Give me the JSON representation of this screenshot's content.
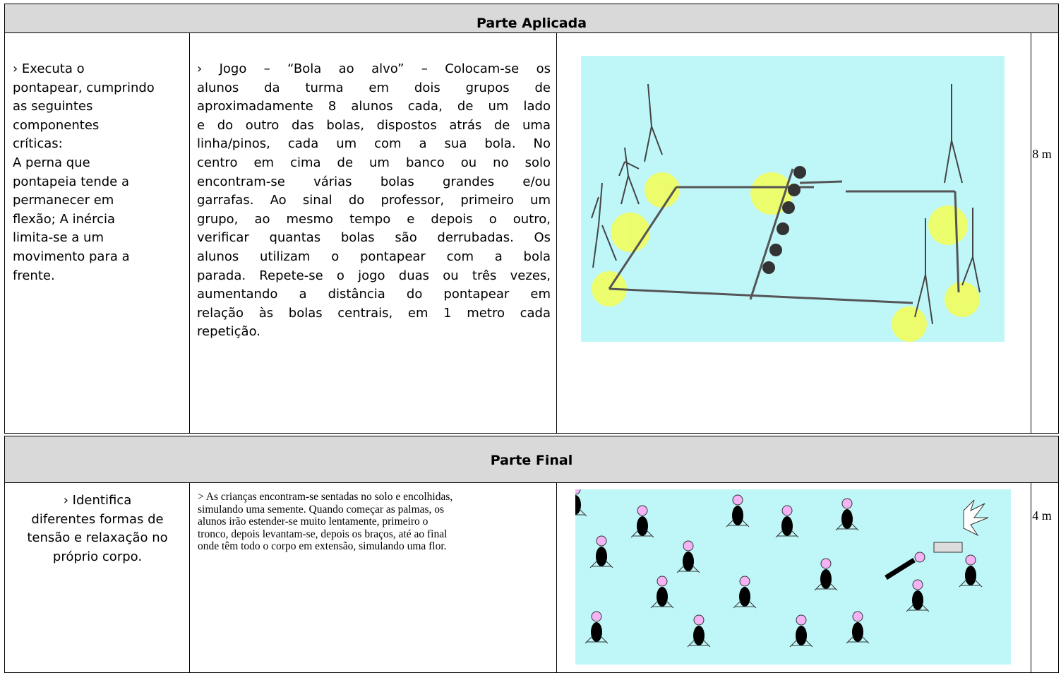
{
  "sections": [
    {
      "title": "Parte Aplicada",
      "objective": [
        "› Executa o",
        "pontapear, cumprindo",
        "as seguintes",
        "componentes",
        "críticas:",
        "A perna que",
        "pontapeia tende a",
        "permanecer em",
        "flexão; A inércia",
        "limita-se a um",
        "movimento para a",
        "frente."
      ],
      "description": [
        "› Jogo – “Bola ao alvo” – Colocam-se os",
        "alunos da turma em dois grupos de",
        "aproximadamente 8 alunos cada, de um lado",
        "e do outro das bolas, dispostos atrás de uma",
        "linha/pinos, cada um com a sua bola. No",
        "centro em cima de um banco ou no solo",
        "encontram-se várias bolas grandes e/ou",
        "garrafas. Ao sinal do professor, primeiro um",
        "grupo, ao mesmo tempo e depois o outro,",
        "verificar quantas bolas são derrubadas. Os",
        "alunos utilizam o pontapear com a bola",
        "parada. Repete-se o jogo duas ou três vezes,",
        "aumentando a distância do pontapear em",
        "relação às bolas centrais, em 1 metro cada",
        "repetição."
      ],
      "time": "8 m"
    },
    {
      "title": "Parte Final",
      "objective": [
        "› Identifica",
        "diferentes formas de",
        "tensão e relaxação no",
        "próprio corpo."
      ],
      "description": [
        "> As crianças encontram-se sentadas no solo e encolhidas,",
        "simulando uma semente. Quando começar as palmas, os",
        "alunos irão estender-se muito lentamente, primeiro o",
        "tronco, depois levantam-se, depois os braços, até ao final",
        "onde têm todo o corpo em extensão, simulando uma flor."
      ],
      "time": "4 m"
    }
  ]
}
